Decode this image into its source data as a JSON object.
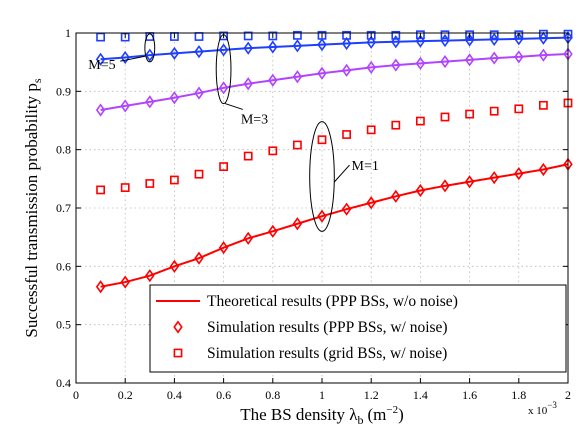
{
  "chart_data": {
    "type": "line",
    "xlabel": "The BS density λ",
    "xlabel_sub": "b",
    "xlabel_unit": "(m",
    "xlabel_unit_exp": "−2",
    "xlabel_close": ")",
    "ylabel": "Successful transmission probability p",
    "ylabel_sub": "s",
    "x_multiplier": "x 10",
    "x_multiplier_exp": "−3",
    "xlim": [
      0,
      2
    ],
    "ylim": [
      0.4,
      1.0
    ],
    "x_ticks": [
      "0",
      "0.2",
      "0.4",
      "0.6",
      "0.8",
      "1",
      "1.2",
      "1.4",
      "1.6",
      "1.8",
      "2"
    ],
    "y_ticks": [
      "0.4",
      "0.5",
      "0.6",
      "0.7",
      "0.8",
      "0.9",
      "1"
    ],
    "x": [
      0.1,
      0.2,
      0.3,
      0.4,
      0.5,
      0.6,
      0.7,
      0.8,
      0.9,
      1.0,
      1.1,
      1.2,
      1.3,
      1.4,
      1.5,
      1.6,
      1.7,
      1.8,
      1.9,
      2.0
    ],
    "series": [
      {
        "group": "M=1",
        "kind": "theory",
        "color": "#ff0000",
        "values": [
          0.565,
          0.573,
          0.584,
          0.6,
          0.614,
          0.632,
          0.648,
          0.66,
          0.673,
          0.686,
          0.698,
          0.709,
          0.72,
          0.73,
          0.738,
          0.745,
          0.752,
          0.759,
          0.766,
          0.775
        ]
      },
      {
        "group": "M=1",
        "kind": "sim_ppp",
        "color": "#ff0000",
        "values": [
          0.565,
          0.573,
          0.584,
          0.6,
          0.614,
          0.632,
          0.648,
          0.66,
          0.673,
          0.686,
          0.698,
          0.709,
          0.72,
          0.73,
          0.738,
          0.745,
          0.752,
          0.759,
          0.766,
          0.775
        ]
      },
      {
        "group": "M=1",
        "kind": "sim_grid",
        "color": "#ff0000",
        "values": [
          0.731,
          0.735,
          0.742,
          0.748,
          0.758,
          0.771,
          0.789,
          0.798,
          0.808,
          0.817,
          0.826,
          0.834,
          0.842,
          0.849,
          0.856,
          0.861,
          0.866,
          0.87,
          0.876,
          0.88
        ]
      },
      {
        "group": "M=3",
        "kind": "theory",
        "color": "#b144ff",
        "values": [
          0.868,
          0.875,
          0.882,
          0.889,
          0.897,
          0.906,
          0.913,
          0.919,
          0.925,
          0.931,
          0.936,
          0.941,
          0.945,
          0.948,
          0.951,
          0.954,
          0.957,
          0.959,
          0.962,
          0.964
        ]
      },
      {
        "group": "M=3",
        "kind": "sim_ppp",
        "color": "#b144ff",
        "values": [
          0.868,
          0.875,
          0.882,
          0.889,
          0.897,
          0.906,
          0.913,
          0.919,
          0.925,
          0.931,
          0.936,
          0.941,
          0.945,
          0.948,
          0.951,
          0.954,
          0.957,
          0.959,
          0.962,
          0.964
        ]
      },
      {
        "group": "M=5",
        "kind": "theory",
        "color": "#1f3fff",
        "values": [
          0.955,
          0.958,
          0.962,
          0.965,
          0.968,
          0.971,
          0.974,
          0.976,
          0.978,
          0.98,
          0.982,
          0.984,
          0.985,
          0.986,
          0.987,
          0.988,
          0.989,
          0.99,
          0.991,
          0.992
        ]
      },
      {
        "group": "M=5",
        "kind": "sim_ppp",
        "color": "#1f3fff",
        "values": [
          0.955,
          0.958,
          0.962,
          0.965,
          0.968,
          0.971,
          0.974,
          0.976,
          0.978,
          0.98,
          0.982,
          0.984,
          0.985,
          0.986,
          0.987,
          0.988,
          0.989,
          0.99,
          0.991,
          0.992
        ]
      },
      {
        "group": "M=5",
        "kind": "sim_grid",
        "color": "#1f3fff",
        "values": [
          0.993,
          0.993,
          0.994,
          0.994,
          0.994,
          0.995,
          0.995,
          0.995,
          0.996,
          0.996,
          0.996,
          0.996,
          0.996,
          0.997,
          0.997,
          0.997,
          0.997,
          0.997,
          0.998,
          0.998
        ]
      }
    ],
    "legend": {
      "placement": "bottom-right",
      "entries": [
        {
          "label": "Theoretical results (PPP BSs, w/o noise)",
          "marker": "line",
          "color": "#ff0000"
        },
        {
          "label": "Simulation results (PPP BSs, w/ noise)",
          "marker": "diamond",
          "color": "#ff0000"
        },
        {
          "label": "Simulation results (grid BSs, w/ noise)",
          "marker": "square",
          "color": "#ff0000"
        }
      ]
    },
    "annotations": [
      {
        "text": "M=5",
        "ellipse": {
          "cx": 0.3,
          "cy": 0.9745,
          "rx": 0.02,
          "ry": 0.024
        },
        "text_x": 0.05,
        "text_y": 0.938
      },
      {
        "text": "M=3",
        "ellipse": {
          "cx": 0.6,
          "cy": 0.938,
          "rx": 0.03,
          "ry": 0.059
        },
        "text_x": 0.67,
        "text_y": 0.845
      },
      {
        "text": "M=1",
        "ellipse": {
          "cx": 1.0,
          "cy": 0.754,
          "rx": 0.05,
          "ry": 0.094
        },
        "text_x": 1.12,
        "text_y": 0.765
      }
    ],
    "grid": true
  }
}
